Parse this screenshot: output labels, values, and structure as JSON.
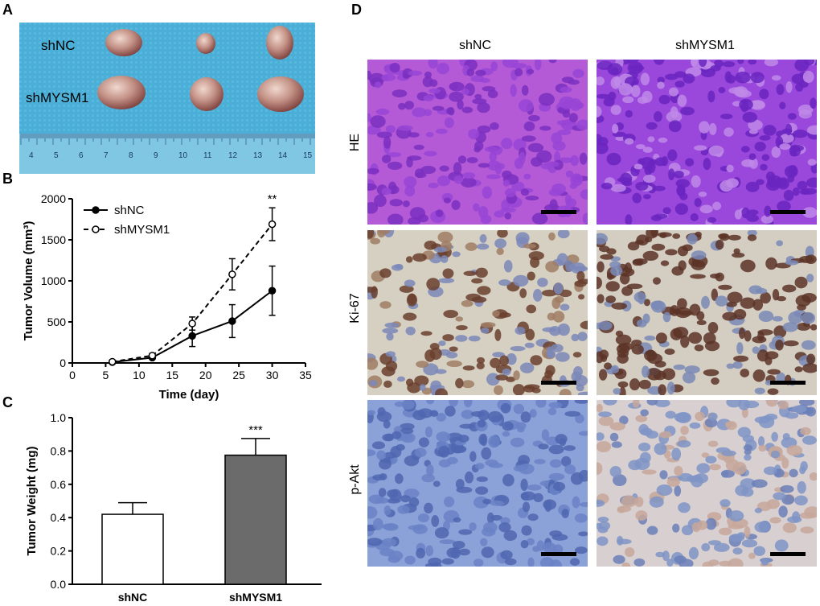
{
  "panels": {
    "A": {
      "letter": "A",
      "label_top": "shNC",
      "label_bottom": "shMYSM1",
      "ruler_ticks": [
        "4",
        "5",
        "6",
        "7",
        "8",
        "9",
        "10",
        "11",
        "12",
        "13",
        "14",
        "15"
      ],
      "colors": {
        "background": "#4fb2d8",
        "ruler": "#7ec7e2",
        "tumor": "#c99a8e"
      }
    },
    "B": {
      "letter": "B"
    },
    "C": {
      "letter": "C"
    },
    "D": {
      "letter": "D",
      "columns": [
        "shNC",
        "shMYSM1"
      ],
      "rows": [
        "HE",
        "Ki-67",
        "p-Akt"
      ],
      "colors": {
        "he": "#9a3fd1",
        "ki67_bg": "#d8d2c4",
        "ki67_nuclei": "#6b4030",
        "pakt_bg": "#7f9ad3",
        "pakt_bg2": "#d9d0cf"
      }
    }
  },
  "chart_data": [
    {
      "type": "line",
      "xlabel": "Time (day)",
      "ylabel": "Tumor Volume (mm³)",
      "xlim": [
        0,
        35
      ],
      "ylim": [
        0,
        2000
      ],
      "xticks": [
        "0",
        "5",
        "10",
        "15",
        "20",
        "25",
        "30",
        "35"
      ],
      "yticks": [
        "0",
        "500",
        "1000",
        "1500",
        "2000"
      ],
      "x": [
        6,
        12,
        18,
        24,
        30
      ],
      "series": [
        {
          "name": "shNC",
          "values": [
            10,
            65,
            330,
            510,
            880
          ],
          "errors": [
            10,
            20,
            130,
            200,
            300
          ],
          "style": "solid",
          "marker": "filled-circle"
        },
        {
          "name": "shMYSM1",
          "values": [
            15,
            90,
            480,
            1080,
            1690
          ],
          "errors": [
            10,
            25,
            80,
            190,
            200
          ],
          "style": "dashed",
          "marker": "open-circle"
        }
      ],
      "annotations": [
        {
          "x": 30,
          "text": "**"
        }
      ],
      "legend_position": "top-left",
      "grid": false
    },
    {
      "type": "bar",
      "categories": [
        "shNC",
        "shMYSM1"
      ],
      "values": [
        0.42,
        0.775
      ],
      "errors": [
        0.07,
        0.1
      ],
      "ylabel": "Tumor Weight (mg)",
      "ylim": [
        0,
        1.0
      ],
      "yticks": [
        "0.0",
        "0.2",
        "0.4",
        "0.6",
        "0.8",
        "1.0"
      ],
      "bar_colors": [
        "#ffffff",
        "#6b6b6b"
      ],
      "annotations": [
        {
          "category": "shMYSM1",
          "text": "***"
        }
      ],
      "grid": false
    }
  ]
}
